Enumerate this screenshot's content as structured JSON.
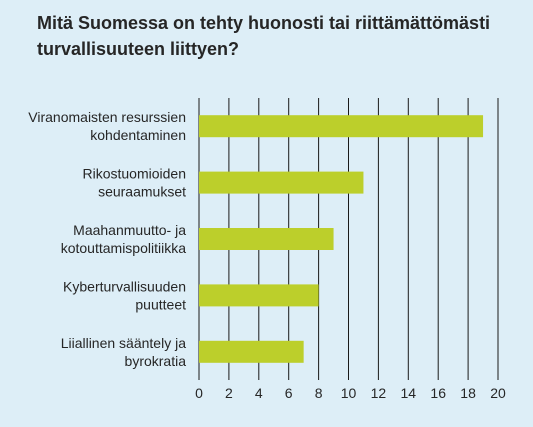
{
  "chart_data": {
    "type": "bar",
    "orientation": "horizontal",
    "title": "Mitä Suomessa on tehty huonosti tai riittämättömästi turvallisuuteen liittyen?",
    "categories": [
      [
        "Viranomaisten resurssien",
        "kohdentaminen"
      ],
      [
        "Rikostuomioiden",
        "seuraamukset"
      ],
      [
        "Maahanmuutto- ja",
        "kotouttamispolitiikka"
      ],
      [
        "Kyberturvallisuuden",
        "puutteet"
      ],
      [
        "Liiallinen sääntely ja",
        "byrokratia"
      ]
    ],
    "values": [
      19,
      11,
      9,
      8,
      7
    ],
    "xlabel": "",
    "ylabel": "",
    "xlim": [
      0,
      20
    ],
    "xticks": [
      "0",
      "2",
      "4",
      "6",
      "8",
      "10",
      "12",
      "14",
      "16",
      "18",
      "20"
    ],
    "grid": "vertical",
    "legend": "none",
    "colors": {
      "background": "#ddeef7",
      "bar": "#bccf2b",
      "grid": "#1a1a1a",
      "text": "#262626"
    }
  }
}
